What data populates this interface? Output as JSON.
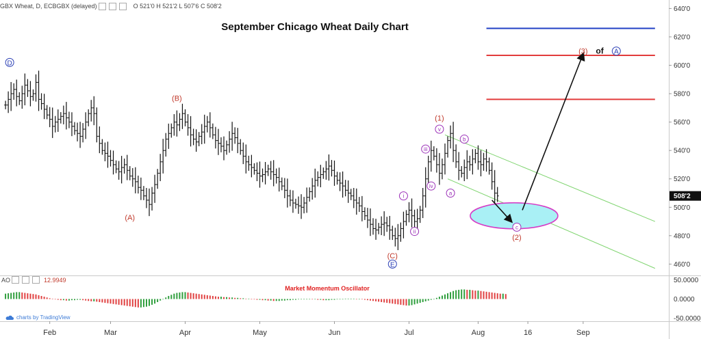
{
  "header": {
    "symbol": "GBX Wheat, D, ECBGBX (delayed)",
    "ohlc": "O 521'0  H 521'2  L 507'6  C 508'2"
  },
  "chart_data": [
    {
      "type": "line",
      "title": "September Chicago Wheat Daily Chart",
      "x_ticks": [
        "Feb",
        "Mar",
        "Apr",
        "May",
        "Jun",
        "Jul",
        "Aug",
        "16",
        "Sep"
      ],
      "y_ticks": [
        "640'0",
        "620'0",
        "600'0",
        "580'0",
        "560'0",
        "540'0",
        "520'0",
        "500'0",
        "480'0",
        "460'0"
      ],
      "ylim": [
        452,
        645
      ],
      "last_price_label": "508'2",
      "series": [
        {
          "closes": [
            572,
            576,
            580,
            583,
            578,
            575,
            580,
            586,
            582,
            578,
            580,
            588,
            576,
            573,
            569,
            565,
            562,
            557,
            560,
            562,
            564,
            566,
            563,
            560,
            557,
            554,
            552,
            550,
            555,
            560,
            566,
            570,
            566,
            550,
            545,
            540,
            538,
            536,
            533,
            530,
            527,
            525,
            528,
            530,
            526,
            522,
            520,
            518,
            514,
            512,
            508,
            505,
            502,
            510,
            516,
            524,
            532,
            540,
            548,
            552,
            556,
            560,
            558,
            562,
            566,
            560,
            556,
            551,
            548,
            546,
            550,
            553,
            557,
            560,
            556,
            551,
            547,
            545,
            543,
            540,
            544,
            548,
            552,
            549,
            545,
            540,
            536,
            532,
            530,
            528,
            526,
            524,
            522,
            523,
            525,
            527,
            525,
            523,
            521,
            518,
            515,
            512,
            508,
            505,
            503,
            502,
            501,
            500,
            503,
            507,
            511,
            515,
            519,
            521,
            523,
            525,
            527,
            529,
            526,
            522,
            519,
            517,
            515,
            512,
            510,
            508,
            505,
            503,
            501,
            497,
            494,
            491,
            488,
            485,
            484,
            486,
            488,
            489,
            487,
            484,
            480,
            478,
            480,
            485,
            490,
            495,
            498,
            494,
            490,
            492,
            498,
            508,
            520,
            532,
            540,
            536,
            530,
            524,
            530,
            538,
            547,
            552,
            540,
            532,
            526,
            524,
            528,
            532,
            530,
            534,
            538,
            532,
            530,
            534,
            532,
            526,
            518,
            510,
            508
          ]
        }
      ]
    },
    {
      "type": "bar",
      "title": "Market Momentum Oscillator",
      "y_ticks": [
        "50.0000",
        "0.0000",
        "-50.0000"
      ],
      "ylim": [
        -58,
        58
      ],
      "indicator_label": "AO",
      "last_value_label": "12.9949",
      "values": [
        14,
        15,
        16,
        17,
        18,
        18,
        17,
        16,
        15,
        14,
        13,
        12,
        10,
        8,
        6,
        4,
        2,
        1,
        -1,
        -2,
        -3,
        -3,
        -4,
        -4,
        -3,
        -3,
        -2,
        -2,
        -3,
        -4,
        -5,
        -6,
        -6,
        -7,
        -8,
        -9,
        -10,
        -11,
        -12,
        -13,
        -14,
        -15,
        -16,
        -17,
        -18,
        -19,
        -20,
        -21,
        -22,
        -22,
        -21,
        -20,
        -18,
        -15,
        -12,
        -8,
        -4,
        0,
        4,
        8,
        11,
        14,
        16,
        17,
        18,
        18,
        17,
        16,
        15,
        14,
        13,
        12,
        11,
        10,
        9,
        8,
        7,
        6,
        6,
        5,
        5,
        4,
        4,
        3,
        3,
        2,
        2,
        1,
        1,
        0,
        -1,
        -2,
        -2,
        -3,
        -3,
        -4,
        -4,
        -5,
        -5,
        -5,
        -4,
        -4,
        -3,
        -3,
        -2,
        -2,
        -1,
        -1,
        -1,
        0,
        0,
        -1,
        -1,
        -2,
        -2,
        -3,
        -3,
        -3,
        -2,
        -2,
        -1,
        -1,
        0,
        1,
        1,
        1,
        1,
        0,
        0,
        -1,
        -2,
        -3,
        -4,
        -5,
        -6,
        -7,
        -8,
        -9,
        -10,
        -11,
        -12,
        -13,
        -14,
        -15,
        -16,
        -17,
        -17,
        -16,
        -14,
        -12,
        -10,
        -8,
        -6,
        -4,
        -2,
        0,
        3,
        6,
        9,
        12,
        15,
        18,
        21,
        23,
        24,
        25,
        25,
        24,
        24,
        23,
        22,
        22,
        21,
        20,
        19,
        18,
        17,
        16,
        15,
        14,
        14,
        13
      ]
    }
  ],
  "wave_labels": [
    {
      "text": "D",
      "style": "circle-blue",
      "date": 1.5,
      "price": 602
    },
    {
      "text": "(A)",
      "style": "red",
      "date": 45,
      "price": 493
    },
    {
      "text": "(B)",
      "style": "red",
      "date": 62,
      "price": 577
    },
    {
      "text": "(C)",
      "style": "red",
      "date": 140,
      "price": 466
    },
    {
      "text": "E",
      "style": "circle-blue",
      "date": 140,
      "price": 460
    },
    {
      "text": "i",
      "style": "circle-purple",
      "date": 144,
      "price": 508
    },
    {
      "text": "ii",
      "style": "circle-purple",
      "date": 148,
      "price": 483
    },
    {
      "text": "iii",
      "style": "circle-purple",
      "date": 152,
      "price": 541
    },
    {
      "text": "iv",
      "style": "circle-purple",
      "date": 154,
      "price": 515
    },
    {
      "text": "(1)",
      "style": "red",
      "date": 157,
      "price": 563
    },
    {
      "text": "v",
      "style": "circle-purple",
      "date": 157,
      "price": 555
    },
    {
      "text": "a",
      "style": "circle-purple",
      "date": 161,
      "price": 510
    },
    {
      "text": "b",
      "style": "circle-purple",
      "date": 166,
      "price": 548
    },
    {
      "text": "c",
      "style": "circle-purple",
      "date": 185,
      "price": 486
    },
    {
      "text": "(2)",
      "style": "red",
      "date": 185,
      "price": 479
    },
    {
      "text": "(3)",
      "style": "red",
      "date": 209,
      "price": 610
    },
    {
      "text": "of",
      "style": "bold",
      "date": 215,
      "price": 610
    },
    {
      "text": "A",
      "style": "circle-blue",
      "date": 221,
      "price": 610
    }
  ],
  "target_lines": [
    {
      "price": 626,
      "color": "#1f3fc4",
      "from_date": 174,
      "to_date": 235
    },
    {
      "price": 607,
      "color": "#e23b3b",
      "from_date": 174,
      "to_date": 235
    },
    {
      "price": 576,
      "color": "#e23b3b",
      "from_date": 174,
      "to_date": 235
    }
  ],
  "channel": {
    "color": "#7ed46e",
    "upper": [
      [
        159,
        551
      ],
      [
        235,
        490
      ]
    ],
    "lower": [
      [
        160,
        520
      ],
      [
        235,
        457
      ]
    ]
  },
  "ellipse": {
    "date": 184,
    "price": 494,
    "fill": "#a9f0f5",
    "stroke": "#d63cc6"
  },
  "arrows": [
    {
      "from": [
        176,
        505
      ],
      "to": [
        183,
        490
      ]
    },
    {
      "from": [
        187,
        498
      ],
      "to": [
        209,
        608
      ]
    }
  ],
  "x_tick_dates": [
    16,
    38,
    65,
    92,
    119,
    146,
    171,
    189,
    209
  ],
  "axis_note": "charts by TradingView"
}
